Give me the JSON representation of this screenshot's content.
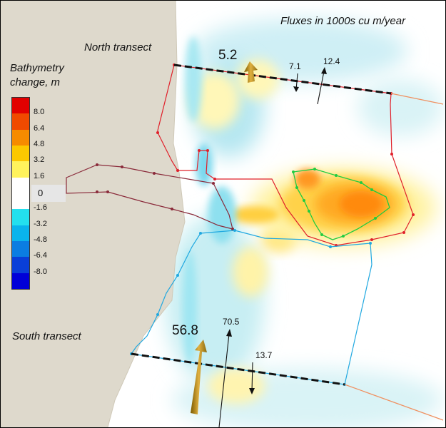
{
  "title": "Fluxes in 1000s cu m/year",
  "north_transect": {
    "label": "North transect",
    "net_flux": "5.2",
    "southward_flux": "7.1",
    "northward_flux": "12.4"
  },
  "south_transect": {
    "label": "South transect",
    "net_flux": "56.8",
    "northward_flux": "70.5",
    "southward_flux": "13.7"
  },
  "legend": {
    "title_line1": "Bathymetry",
    "title_line2": "change, m",
    "ticks": [
      "8.0",
      "6.4",
      "4.8",
      "3.2",
      "1.6",
      "0",
      "-1.6",
      "-3.2",
      "-4.8",
      "-6.4",
      "-8.0"
    ],
    "colors": [
      "#e10000",
      "#f04a00",
      "#f68b00",
      "#fcc800",
      "#fff35c",
      "#ffffff",
      "#ffffff",
      "#23e0ee",
      "#0ab4ec",
      "#0b7de2",
      "#0a3fd8",
      "#0000d8"
    ]
  },
  "colors": {
    "land": "#ded9cc",
    "north_polygon": "#e0202a",
    "south_polygon": "#20a8e0",
    "shoal_polygon": "#20cc40",
    "channel_polygon": "#8a2a3a",
    "transect_line": "#111111",
    "arrow": "#b8860b"
  }
}
